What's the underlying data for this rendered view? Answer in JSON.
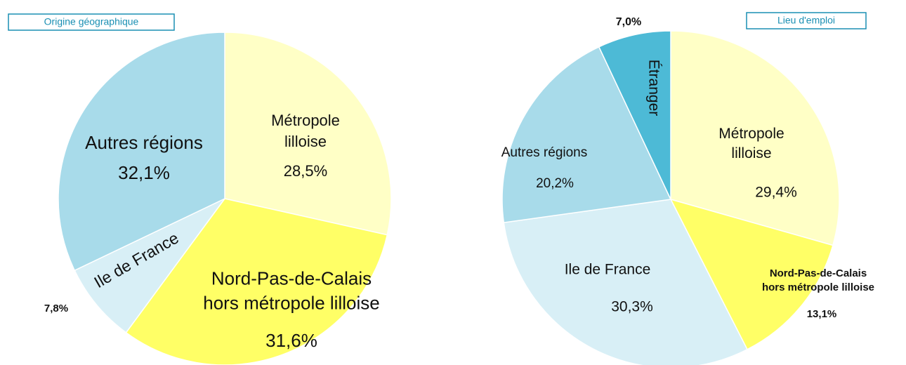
{
  "chart_data": [
    {
      "type": "pie",
      "title": "Origine géographique",
      "categories": [
        "Métropole\nlilloise",
        "Nord-Pas-de-Calais\nhors métropole lilloise",
        "Ile de France",
        "Autres régions"
      ],
      "values": [
        28.5,
        31.6,
        7.8,
        32.1
      ],
      "value_labels": [
        "28,5%",
        "31,6%",
        "7,8%",
        "32,1%"
      ],
      "colors": [
        "#ffffc6",
        "#ffff66",
        "#d8eff6",
        "#a8dbea"
      ]
    },
    {
      "type": "pie",
      "title": "Lieu d'emploi",
      "categories": [
        "Métropole\nlilloise",
        "Nord-Pas-de-Calais\nhors métropole lilloise",
        "Ile de France",
        "Autres régions",
        "Étranger"
      ],
      "values": [
        29.4,
        13.1,
        30.3,
        20.2,
        7.0
      ],
      "value_labels": [
        "29,4%",
        "13,1%",
        "30,3%",
        "20,2%",
        "7,0%"
      ],
      "colors": [
        "#ffffc6",
        "#ffff66",
        "#d8eff6",
        "#a8dbea",
        "#4dbad6"
      ]
    }
  ]
}
